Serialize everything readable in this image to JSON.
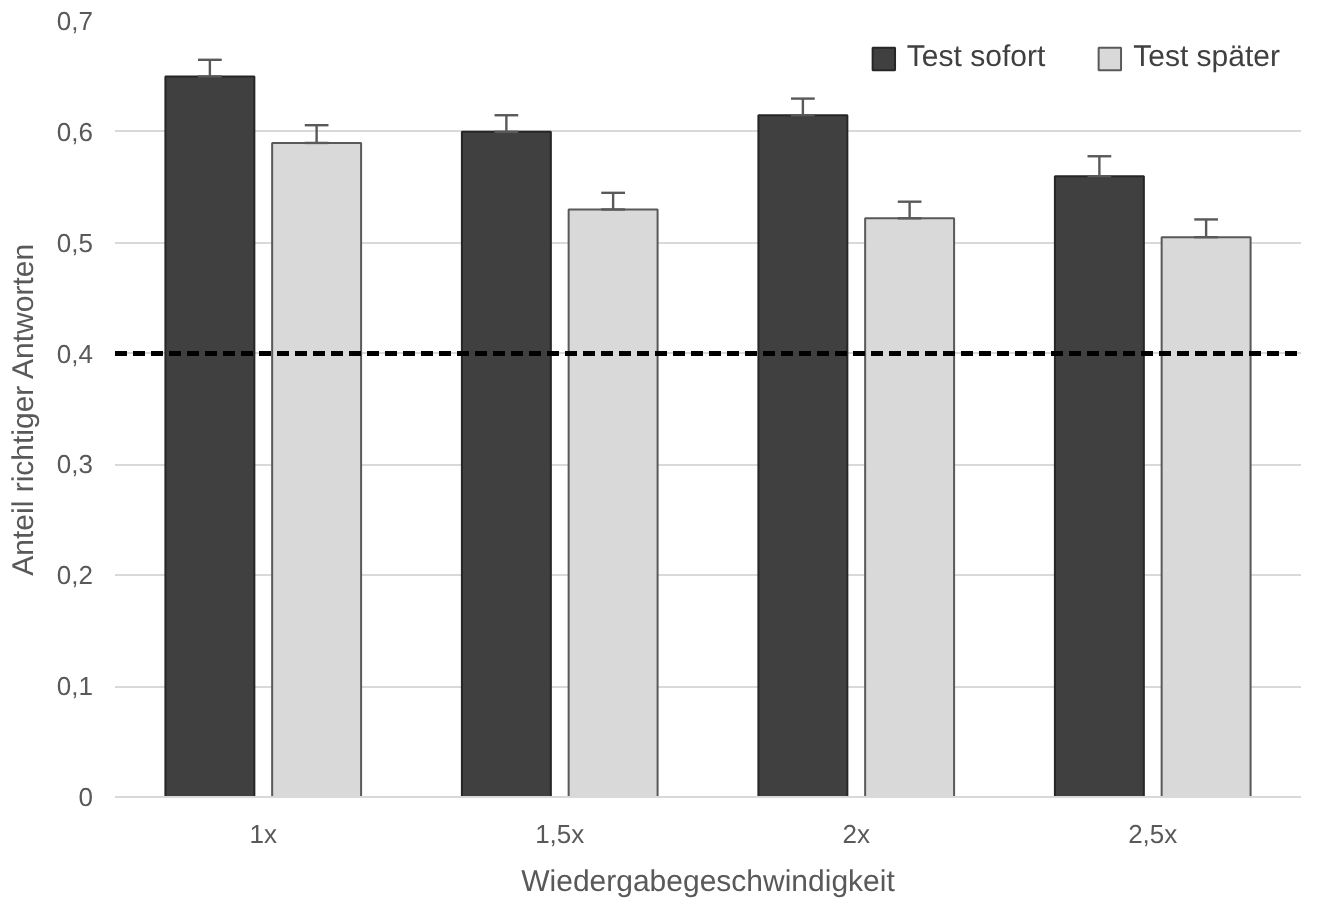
{
  "chart_data": {
    "type": "bar",
    "xlabel": "Wiedergabegeschwindigkeit",
    "ylabel": "Anteil richtiger Antworten",
    "categories": [
      "1x",
      "1,5x",
      "2x",
      "2,5x"
    ],
    "series": [
      {
        "name": "Test sofort",
        "color": "#404040",
        "values": [
          0.65,
          0.6,
          0.615,
          0.56
        ],
        "errors": [
          [
            0.65,
            0.665
          ],
          [
            0.6,
            0.615
          ],
          [
            0.615,
            0.63
          ],
          [
            0.56,
            0.578
          ]
        ]
      },
      {
        "name": "Test später",
        "color": "#d9d9d9",
        "values": [
          0.59,
          0.53,
          0.522,
          0.505
        ],
        "errors": [
          [
            0.59,
            0.606
          ],
          [
            0.53,
            0.545
          ],
          [
            0.522,
            0.537
          ],
          [
            0.505,
            0.521
          ]
        ]
      }
    ],
    "ylim": [
      0,
      0.7
    ],
    "yticks": [
      {
        "value": 0,
        "label": "0"
      },
      {
        "value": 0.1,
        "label": "0,1"
      },
      {
        "value": 0.2,
        "label": "0,2"
      },
      {
        "value": 0.3,
        "label": "0,3"
      },
      {
        "value": 0.4,
        "label": "0,4"
      },
      {
        "value": 0.5,
        "label": "0,5"
      },
      {
        "value": 0.6,
        "label": "0,6"
      },
      {
        "value": 0.7,
        "label": "0,7"
      }
    ],
    "ref_lines": [
      {
        "axis": "y",
        "value": 0.4,
        "color": "#000000",
        "line_style": "dashed"
      }
    ],
    "grid": "y",
    "legend": "top right"
  }
}
